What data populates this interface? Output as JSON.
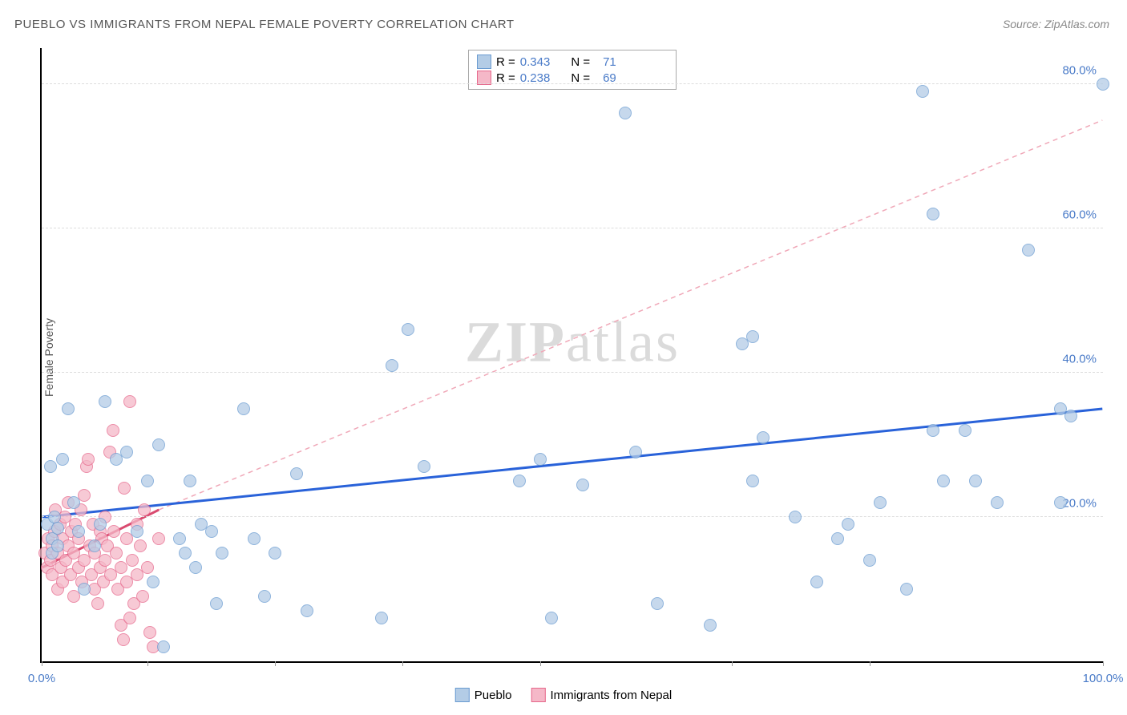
{
  "title": "PUEBLO VS IMMIGRANTS FROM NEPAL FEMALE POVERTY CORRELATION CHART",
  "source": "Source: ZipAtlas.com",
  "ylabel": "Female Poverty",
  "watermark": {
    "bold": "ZIP",
    "light": "atlas"
  },
  "chart": {
    "type": "scatter",
    "xlim": [
      0,
      100
    ],
    "ylim": [
      0,
      85
    ],
    "xtick_positions": [
      0,
      10,
      22,
      34,
      47,
      65,
      78,
      100
    ],
    "xtick_labels": {
      "0": "0.0%",
      "100": "100.0%"
    },
    "ytick_positions": [
      20,
      40,
      60,
      80
    ],
    "ytick_labels": [
      "20.0%",
      "40.0%",
      "60.0%",
      "80.0%"
    ],
    "gridline_color": "#dddddd",
    "axis_color": "#000000",
    "label_color_x": "#4a7bc8",
    "label_color_y": "#4a7bc8",
    "background_color": "#ffffff",
    "label_fontsize": 15,
    "title_fontsize": 15
  },
  "series": {
    "pueblo": {
      "label": "Pueblo",
      "color_fill": "#b3cce6",
      "color_stroke": "#6a9bd1",
      "marker_size": 16,
      "trend": {
        "x1": 0,
        "y1": 20,
        "x2": 100,
        "y2": 35,
        "color": "#2962d9",
        "width": 3,
        "dash": "none"
      },
      "r_value": "0.343",
      "n_value": "71",
      "points": [
        [
          0.5,
          19
        ],
        [
          0.8,
          27
        ],
        [
          1,
          15
        ],
        [
          1,
          17
        ],
        [
          1.2,
          20
        ],
        [
          1.5,
          16
        ],
        [
          1.5,
          18.5
        ],
        [
          2,
          28
        ],
        [
          2.5,
          35
        ],
        [
          3,
          22
        ],
        [
          3.5,
          18
        ],
        [
          4,
          10
        ],
        [
          5,
          16
        ],
        [
          5.5,
          19
        ],
        [
          6,
          36
        ],
        [
          7,
          28
        ],
        [
          8,
          29
        ],
        [
          9,
          18
        ],
        [
          10,
          25
        ],
        [
          10.5,
          11
        ],
        [
          11,
          30
        ],
        [
          11.5,
          2
        ],
        [
          13,
          17
        ],
        [
          13.5,
          15
        ],
        [
          14,
          25
        ],
        [
          14.5,
          13
        ],
        [
          15,
          19
        ],
        [
          16,
          18
        ],
        [
          16.5,
          8
        ],
        [
          17,
          15
        ],
        [
          19,
          35
        ],
        [
          20,
          17
        ],
        [
          21,
          9
        ],
        [
          22,
          15
        ],
        [
          24,
          26
        ],
        [
          25,
          7
        ],
        [
          32,
          6
        ],
        [
          33,
          41
        ],
        [
          34.5,
          46
        ],
        [
          36,
          27
        ],
        [
          45,
          25
        ],
        [
          47,
          28
        ],
        [
          48,
          6
        ],
        [
          51,
          24.5
        ],
        [
          55,
          76
        ],
        [
          56,
          29
        ],
        [
          58,
          8
        ],
        [
          63,
          5
        ],
        [
          66,
          44
        ],
        [
          67,
          45
        ],
        [
          67,
          25
        ],
        [
          68,
          31
        ],
        [
          71,
          20
        ],
        [
          73,
          11
        ],
        [
          75,
          17
        ],
        [
          76,
          19
        ],
        [
          78,
          14
        ],
        [
          79,
          22
        ],
        [
          81.5,
          10
        ],
        [
          83,
          79
        ],
        [
          84,
          62
        ],
        [
          84,
          32
        ],
        [
          85,
          25
        ],
        [
          87,
          32
        ],
        [
          88,
          25
        ],
        [
          90,
          22
        ],
        [
          93,
          57
        ],
        [
          96,
          22
        ],
        [
          96,
          35
        ],
        [
          97,
          34
        ],
        [
          100,
          80
        ]
      ]
    },
    "nepal": {
      "label": "Immigrants from Nepal",
      "color_fill": "#f5b8c8",
      "color_stroke": "#e6678b",
      "marker_size": 16,
      "trend": {
        "x1": 0,
        "y1": 13,
        "x2": 11,
        "y2": 21,
        "color": "#d94a6f",
        "width": 3,
        "dash": "none"
      },
      "trend_ext": {
        "x1": 11,
        "y1": 21,
        "x2": 100,
        "y2": 75,
        "color": "#f0a8b8",
        "width": 1.5,
        "dash": "6,5"
      },
      "r_value": "0.238",
      "n_value": "69",
      "points": [
        [
          0.3,
          15
        ],
        [
          0.5,
          13
        ],
        [
          0.6,
          17
        ],
        [
          0.8,
          14
        ],
        [
          1,
          12
        ],
        [
          1,
          16
        ],
        [
          1.2,
          18
        ],
        [
          1.3,
          21
        ],
        [
          1.5,
          10
        ],
        [
          1.5,
          15
        ],
        [
          1.7,
          19
        ],
        [
          1.8,
          13
        ],
        [
          2,
          11
        ],
        [
          2,
          17
        ],
        [
          2.2,
          20
        ],
        [
          2.3,
          14
        ],
        [
          2.5,
          16
        ],
        [
          2.5,
          22
        ],
        [
          2.7,
          12
        ],
        [
          2.8,
          18
        ],
        [
          3,
          9
        ],
        [
          3,
          15
        ],
        [
          3.2,
          19
        ],
        [
          3.5,
          13
        ],
        [
          3.5,
          17
        ],
        [
          3.7,
          21
        ],
        [
          3.8,
          11
        ],
        [
          4,
          14
        ],
        [
          4,
          23
        ],
        [
          4.2,
          27
        ],
        [
          4.4,
          28
        ],
        [
          4.5,
          16
        ],
        [
          4.7,
          12
        ],
        [
          4.8,
          19
        ],
        [
          5,
          10
        ],
        [
          5,
          15
        ],
        [
          5.3,
          8
        ],
        [
          5.5,
          18
        ],
        [
          5.5,
          13
        ],
        [
          5.7,
          17
        ],
        [
          5.8,
          11
        ],
        [
          6,
          14
        ],
        [
          6,
          20
        ],
        [
          6.2,
          16
        ],
        [
          6.4,
          29
        ],
        [
          6.5,
          12
        ],
        [
          6.7,
          32
        ],
        [
          6.8,
          18
        ],
        [
          7,
          15
        ],
        [
          7.2,
          10
        ],
        [
          7.5,
          13
        ],
        [
          7.5,
          5
        ],
        [
          7.7,
          3
        ],
        [
          7.8,
          24
        ],
        [
          8,
          17
        ],
        [
          8,
          11
        ],
        [
          8.3,
          36
        ],
        [
          8.3,
          6
        ],
        [
          8.5,
          14
        ],
        [
          8.7,
          8
        ],
        [
          9,
          19
        ],
        [
          9,
          12
        ],
        [
          9.3,
          16
        ],
        [
          9.5,
          9
        ],
        [
          9.7,
          21
        ],
        [
          10,
          13
        ],
        [
          10.2,
          4
        ],
        [
          10.5,
          2
        ],
        [
          11,
          17
        ]
      ]
    }
  },
  "legend_top": {
    "r_label": "R =",
    "n_label": "N =",
    "value_color": "#4a7bc8"
  }
}
